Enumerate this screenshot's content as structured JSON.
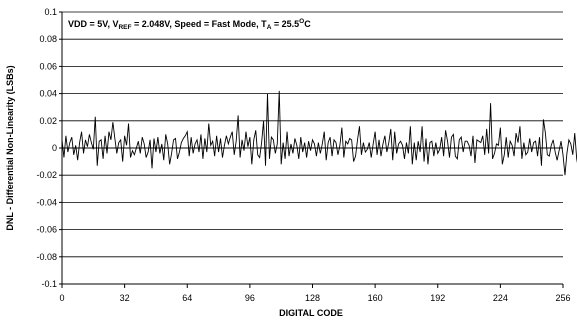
{
  "chart_data": {
    "type": "line",
    "title": "",
    "annotation": {
      "prefix": "VDD = 5V, V",
      "sub1": "REF",
      "mid": " = 2.048V, Speed = Fast Mode, T",
      "sub2": "A",
      "mid2": " = 25.5",
      "sup": "O",
      "suffix": "C"
    },
    "xlabel": "DIGITAL CODE",
    "ylabel": "DNL - Differential Non-Linearity (LSBs)",
    "xlim": [
      0,
      256
    ],
    "ylim": [
      -0.1,
      0.1
    ],
    "xticks": [
      0,
      32,
      64,
      96,
      128,
      160,
      192,
      224,
      256
    ],
    "xtick_labels": [
      "0",
      "32",
      "64",
      "96",
      "128",
      "160",
      "192",
      "224",
      "256"
    ],
    "yticks": [
      0.1,
      0.08,
      0.06,
      0.04,
      0.02,
      0,
      -0.02,
      -0.04,
      -0.06,
      -0.08,
      -0.1
    ],
    "ytick_labels": [
      "0.1",
      "0.08",
      "0.06",
      "0.04",
      "0.02",
      "0",
      "-0.02",
      "-0.04",
      "-0.06",
      "-0.08",
      "-0.1"
    ],
    "grid": true,
    "series": [
      {
        "name": "",
        "x_start": 0,
        "x_step": 1,
        "values": [
          0.006,
          -0.007,
          0.009,
          -0.003,
          0.004,
          0.008,
          -0.005,
          0.002,
          -0.009,
          0.004,
          0.012,
          -0.004,
          0.006,
          0.001,
          0.01,
          0.004,
          -0.001,
          0.023,
          -0.013,
          0.005,
          0.006,
          -0.008,
          0.009,
          -0.004,
          0.012,
          0.006,
          0.019,
          0.007,
          -0.004,
          0.004,
          0.006,
          -0.01,
          0.009,
          0.002,
          0.018,
          -0.007,
          -0.002,
          -0.005,
          0.0,
          0.005,
          -0.004,
          0.008,
          0.003,
          -0.007,
          -0.003,
          0.006,
          -0.015,
          0.007,
          -0.003,
          0.008,
          -0.004,
          0.003,
          -0.009,
          0.01,
          0.003,
          -0.012,
          -0.004,
          0.006,
          0.007,
          -0.008,
          -0.003,
          0.004,
          0.007,
          0.009,
          0.012,
          -0.006,
          0.008,
          -0.004,
          0.003,
          0.006,
          -0.003,
          0.01,
          -0.008,
          0.007,
          -0.003,
          0.018,
          0.002,
          0.005,
          -0.006,
          0.009,
          -0.003,
          0.007,
          -0.007,
          0.002,
          0.009,
          0.003,
          0.008,
          0.012,
          -0.005,
          0.005,
          0.024,
          -0.007,
          0.006,
          -0.002,
          0.012,
          0.001,
          0.008,
          -0.012,
          0.006,
          0.013,
          -0.005,
          -0.007,
          0.004,
          0.02,
          -0.013,
          0.04,
          -0.008,
          0.008,
          0.006,
          -0.004,
          0.003,
          0.042,
          -0.012,
          0.004,
          -0.008,
          0.012,
          -0.006,
          0.003,
          -0.004,
          0.007,
          0.002,
          -0.008,
          0.008,
          -0.003,
          0.004,
          -0.007,
          0.005,
          -0.002,
          0.006,
          0.003,
          -0.006,
          0.004,
          -0.004,
          0.003,
          0.012,
          -0.009,
          0.004,
          0.008,
          -0.006,
          0.006,
          0.004,
          -0.005,
          0.002,
          0.015,
          -0.007,
          0.005,
          0.003,
          0.007,
          0.006,
          -0.01,
          -0.006,
          0.006,
          0.016,
          -0.005,
          0.004,
          -0.003,
          -0.001,
          0.004,
          -0.007,
          0.003,
          0.012,
          -0.005,
          0.006,
          -0.006,
          0.003,
          0.009,
          -0.003,
          0.004,
          0.014,
          -0.009,
          0.012,
          -0.004,
          0.003,
          0.005,
          0.002,
          -0.008,
          0.004,
          -0.004,
          0.016,
          -0.012,
          0.004,
          -0.009,
          0.005,
          -0.003,
          0.016,
          -0.01,
          0.007,
          -0.012,
          0.004,
          0.005,
          -0.006,
          0.004,
          -0.004,
          -0.001,
          0.008,
          -0.006,
          0.013,
          0.005,
          -0.007,
          0.008,
          0.01,
          -0.006,
          -0.008,
          0.006,
          0.008,
          -0.003,
          0.005,
          0.005,
          0.002,
          -0.006,
          0.009,
          -0.011,
          0.006,
          0.005,
          0.004,
          0.009,
          -0.005,
          0.014,
          -0.004,
          0.033,
          -0.008,
          -0.004,
          0.003,
          0.002,
          0.015,
          -0.012,
          -0.005,
          0.008,
          -0.007,
          0.005,
          0.002,
          -0.006,
          0.011,
          0.004,
          0.016,
          -0.008,
          0.004,
          -0.005,
          -0.003,
          0.007,
          -0.003,
          0.004,
          0.005,
          -0.006,
          0.008,
          -0.013,
          0.021,
          0.011,
          -0.005,
          -0.006,
          0.002,
          0.006,
          -0.003,
          -0.009,
          -0.002,
          0.005,
          -0.005,
          -0.02,
          -0.004,
          0.006,
          0.003,
          -0.005,
          0.011,
          -0.008,
          -0.016,
          0.007,
          -0.016,
          0.002,
          0.008,
          -0.012,
          0.005,
          -0.005,
          0.006,
          -0.012,
          0.02,
          0.016,
          -0.005,
          -0.011,
          -0.013,
          -0.016
        ]
      }
    ]
  }
}
